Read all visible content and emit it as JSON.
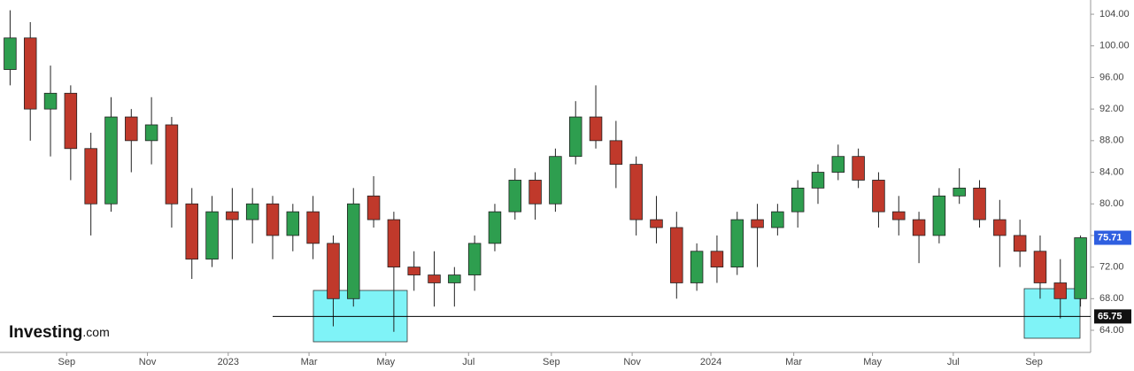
{
  "chart_data": {
    "type": "candlestick",
    "categories": [
      null,
      null,
      null,
      null,
      null,
      null,
      null,
      null,
      null,
      null,
      null,
      null,
      null,
      null,
      null,
      null,
      null,
      null,
      null,
      null,
      null,
      null,
      null,
      null,
      null,
      null,
      null,
      null,
      null,
      null,
      null,
      null,
      null,
      null,
      null,
      null,
      null,
      null,
      null,
      null,
      null,
      null,
      null,
      null,
      null,
      null,
      null,
      null,
      null,
      null,
      null,
      null,
      null,
      null
    ],
    "open": [
      97,
      101,
      92,
      94,
      87,
      80,
      91,
      88,
      90,
      80,
      73,
      79,
      78,
      80,
      76,
      79,
      75,
      68,
      81,
      78,
      72,
      71,
      70,
      71,
      75,
      79,
      83,
      80,
      86,
      91,
      88,
      85,
      78,
      77,
      70,
      74,
      72,
      78,
      77,
      79,
      82,
      84,
      86,
      83,
      79,
      78,
      76,
      81,
      82,
      78,
      76,
      74,
      70,
      68
    ],
    "high": [
      104.5,
      103,
      97.5,
      95,
      89,
      93.5,
      92,
      93.5,
      91,
      82,
      81,
      82,
      82,
      81,
      80,
      81,
      76,
      82,
      83.5,
      79,
      74,
      74,
      72,
      76,
      80,
      84.5,
      84,
      87,
      93,
      95,
      90.5,
      86,
      81,
      79,
      75,
      76,
      79,
      80,
      80,
      83,
      85,
      87.5,
      87,
      84,
      81,
      79,
      82,
      84.5,
      83,
      80.5,
      78,
      76,
      73,
      76
    ],
    "low": [
      95,
      88,
      86,
      83,
      76,
      79,
      84,
      85,
      77,
      70.5,
      72,
      73,
      75,
      73,
      74,
      73,
      64.5,
      67,
      77,
      63.8,
      69,
      67,
      67,
      69,
      74,
      78,
      78,
      79,
      85,
      87,
      82,
      76,
      75,
      68,
      69,
      70,
      71,
      72,
      76,
      77,
      80,
      83,
      82,
      77,
      76,
      72.5,
      75,
      80,
      77,
      72,
      72,
      68,
      65.5,
      67
    ],
    "close": [
      101,
      92,
      94,
      87,
      80,
      91,
      88,
      90,
      80,
      73,
      79,
      78,
      80,
      76,
      79,
      75,
      68,
      80,
      78,
      72,
      71,
      70,
      71,
      75,
      79,
      83,
      80,
      86,
      91,
      88,
      85,
      78,
      77,
      70,
      74,
      72,
      78,
      77,
      79,
      82,
      84,
      86,
      83,
      79,
      78,
      76,
      81,
      82,
      78,
      76,
      74,
      70,
      68,
      75.71
    ],
    "up_color": "#2e9e4f",
    "down_color": "#c0392b",
    "ylim": [
      61.2,
      105.8
    ],
    "yticks": [
      {
        "value": 64,
        "label": "64.00"
      },
      {
        "value": 68,
        "label": "68.00"
      },
      {
        "value": 72,
        "label": "72.00"
      },
      {
        "value": 76,
        "label": "76.00"
      },
      {
        "value": 80,
        "label": "80.00"
      },
      {
        "value": 84,
        "label": "84.00"
      },
      {
        "value": 88,
        "label": "88.00"
      },
      {
        "value": 92,
        "label": "92.00"
      },
      {
        "value": 96,
        "label": "96.00"
      },
      {
        "value": 100,
        "label": "100.00"
      },
      {
        "value": 104,
        "label": "104.00"
      }
    ],
    "xticks": [
      {
        "value": 2.8,
        "label": "Sep"
      },
      {
        "value": 6.8,
        "label": "Nov"
      },
      {
        "value": 10.8,
        "label": "2023"
      },
      {
        "value": 14.8,
        "label": "Mar"
      },
      {
        "value": 18.6,
        "label": "May"
      },
      {
        "value": 22.7,
        "label": "Jul"
      },
      {
        "value": 26.8,
        "label": "Sep"
      },
      {
        "value": 30.8,
        "label": "Nov"
      },
      {
        "value": 34.7,
        "label": "2024"
      },
      {
        "value": 38.8,
        "label": "Mar"
      },
      {
        "value": 42.7,
        "label": "May"
      },
      {
        "value": 46.7,
        "label": "Jul"
      },
      {
        "value": 50.7,
        "label": "Sep"
      }
    ],
    "support_line": 65.75,
    "grid": false
  },
  "logo": {
    "brand": "Investing",
    "suffix": ".com"
  }
}
